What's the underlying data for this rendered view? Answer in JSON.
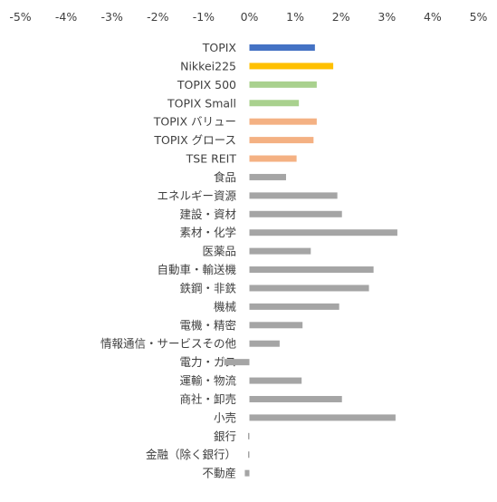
{
  "chart_data": {
    "type": "bar",
    "orientation": "horizontal",
    "title": "",
    "xlabel": "",
    "ylabel": "",
    "xlim": [
      -5,
      5
    ],
    "x_ticks": [
      -5,
      -4,
      -3,
      -2,
      -1,
      0,
      1,
      2,
      3,
      4,
      5
    ],
    "x_tick_labels": [
      "-5%",
      "-4%",
      "-3%",
      "-2%",
      "-1%",
      "0%",
      "1%",
      "2%",
      "3%",
      "4%",
      "5%"
    ],
    "x_axis_position": "top",
    "grid": false,
    "legend": "none",
    "categories": [
      "TOPIX",
      "Nikkei225",
      "TOPIX 500",
      "TOPIX Small",
      "TOPIX バリュー",
      "TOPIX グロース",
      "TSE REIT",
      "食品",
      "エネルギー資源",
      "建設・資材",
      "素材・化学",
      "医薬品",
      "自動車・輸送機",
      "鉄鋼・非鉄",
      "機械",
      "電機・精密",
      "情報通信・サービスその他",
      "電力・ガス",
      "運輸・物流",
      "商社・卸売",
      "小売",
      "銀行",
      "金融（除く銀行）",
      "不動産"
    ],
    "values": [
      1.43,
      1.83,
      1.47,
      1.08,
      1.47,
      1.4,
      1.03,
      0.8,
      1.92,
      2.02,
      3.23,
      1.34,
      2.71,
      2.61,
      1.96,
      1.16,
      0.66,
      -0.55,
      1.14,
      2.02,
      3.19,
      -0.02,
      -0.02,
      -0.1
    ],
    "colors": [
      "#4472C4",
      "#FFC000",
      "#A9D18E",
      "#A9D18E",
      "#F4B183",
      "#F4B183",
      "#F4B183",
      "#A5A5A5",
      "#A5A5A5",
      "#A5A5A5",
      "#A5A5A5",
      "#A5A5A5",
      "#A5A5A5",
      "#A5A5A5",
      "#A5A5A5",
      "#A5A5A5",
      "#A5A5A5",
      "#A5A5A5",
      "#A5A5A5",
      "#A5A5A5",
      "#A5A5A5",
      "#A5A5A5",
      "#A5A5A5",
      "#A5A5A5"
    ]
  }
}
